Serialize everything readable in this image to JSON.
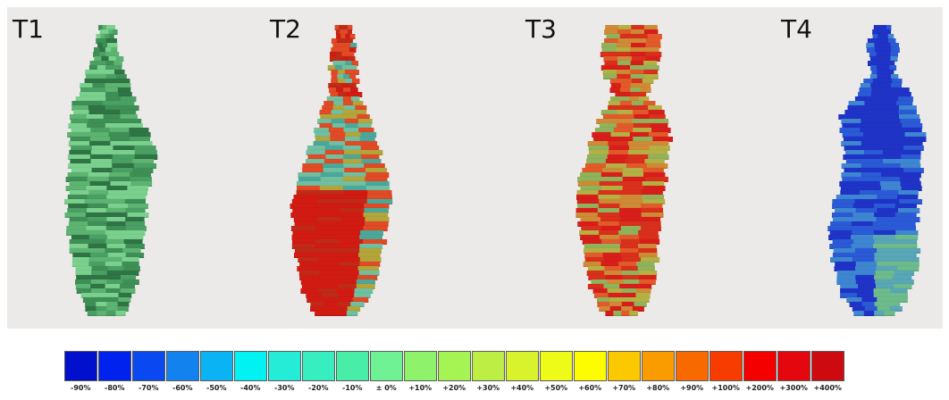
{
  "panels": [
    {
      "label": "T1",
      "shape": "shape-1",
      "palette": [
        "#3e8f55",
        "#5db371",
        "#7bd08e",
        "#4aa063",
        "#2f7445"
      ]
    },
    {
      "label": "T2",
      "shape": "shape-2",
      "palette": [
        "#d11b12",
        "#c02a18",
        "#e04a25",
        "#6fbfa0",
        "#4aa89a",
        "#b3a53a"
      ]
    },
    {
      "label": "T3",
      "shape": "shape-3",
      "palette": [
        "#d9301c",
        "#e25a2a",
        "#cf8a36",
        "#b4b043",
        "#d81e1a",
        "#8fb25a"
      ]
    },
    {
      "label": "T4",
      "shape": "shape-4",
      "palette": [
        "#1f33c7",
        "#2b5ad6",
        "#3e86d1",
        "#58a6b6",
        "#6dbb8b",
        "#1c2cb5"
      ]
    }
  ],
  "legend": [
    {
      "label": "-90%",
      "color": "#0010cc"
    },
    {
      "label": "-80%",
      "color": "#0022ee"
    },
    {
      "label": "-70%",
      "color": "#0a48f2"
    },
    {
      "label": "-60%",
      "color": "#1182ee"
    },
    {
      "label": "-50%",
      "color": "#0ab4f4"
    },
    {
      "label": "-40%",
      "color": "#00f2f2"
    },
    {
      "label": "-30%",
      "color": "#24ecd6"
    },
    {
      "label": "-20%",
      "color": "#36eebf"
    },
    {
      "label": "-10%",
      "color": "#48eea8"
    },
    {
      "label": "± 0%",
      "color": "#6ef294"
    },
    {
      "label": "+10%",
      "color": "#8ef26a"
    },
    {
      "label": "+20%",
      "color": "#a6f454"
    },
    {
      "label": "+30%",
      "color": "#bcee44"
    },
    {
      "label": "+40%",
      "color": "#d8f22c"
    },
    {
      "label": "+50%",
      "color": "#eefa18"
    },
    {
      "label": "+60%",
      "color": "#fdfd00"
    },
    {
      "label": "+70%",
      "color": "#fcc800"
    },
    {
      "label": "+80%",
      "color": "#fa9c00"
    },
    {
      "label": "+90%",
      "color": "#f86a00"
    },
    {
      "label": "+100%",
      "color": "#f83c00"
    },
    {
      "label": "+200%",
      "color": "#f40000"
    },
    {
      "label": "+300%",
      "color": "#e4080e"
    },
    {
      "label": "+400%",
      "color": "#cc0a10"
    }
  ]
}
